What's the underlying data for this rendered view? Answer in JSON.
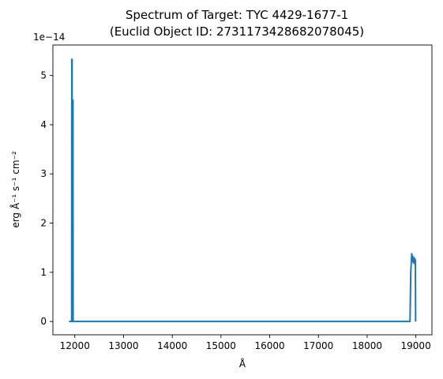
{
  "chart_data": {
    "type": "line",
    "title_line1": "Spectrum of Target: TYC 4429-1677-1",
    "title_line2": "(Euclid Object ID: 2731173428682078045)",
    "xlabel": "Å",
    "ylabel": "erg Å⁻¹ s⁻¹ cm⁻²",
    "y_offset_label": "1e−14",
    "xlim": [
      11550,
      19330
    ],
    "ylim": [
      -0.27,
      5.62
    ],
    "xticks": [
      12000,
      13000,
      14000,
      15000,
      16000,
      17000,
      18000,
      19000
    ],
    "xtick_labels": [
      "12000",
      "13000",
      "14000",
      "15000",
      "16000",
      "17000",
      "18000",
      "19000"
    ],
    "yticks": [
      0,
      1,
      2,
      3,
      4,
      5
    ],
    "ytick_labels": [
      "0",
      "1",
      "2",
      "3",
      "4",
      "5"
    ],
    "grid": false,
    "series": [
      {
        "color": "#1f77b4",
        "x": [
          11880,
          11935,
          11938,
          11941,
          11944,
          11947,
          11950,
          11953,
          11956,
          11959,
          11962,
          11965,
          11968,
          11971,
          11974,
          11977,
          11980,
          11983,
          11986,
          12000,
          12500,
          13000,
          14000,
          15000,
          16000,
          17000,
          18000,
          18500,
          18860,
          18880,
          18895,
          18905,
          18915,
          18925,
          18935,
          18945,
          18955,
          18965,
          18975,
          18985,
          18990,
          18995
        ],
        "y": [
          0.0,
          0.0,
          5.33,
          5.33,
          5.33,
          0.02,
          0.0,
          0.0,
          4.5,
          4.5,
          4.5,
          0.02,
          0.0,
          0.0,
          0.0,
          0.0,
          0.0,
          0.0,
          0.0,
          0.0,
          0.0,
          0.0,
          0.0,
          0.0,
          0.0,
          0.0,
          0.0,
          0.0,
          0.0,
          0.0,
          1.0,
          1.18,
          1.38,
          1.25,
          1.33,
          1.2,
          1.3,
          1.18,
          1.28,
          1.2,
          1.25,
          0.0
        ]
      }
    ]
  }
}
